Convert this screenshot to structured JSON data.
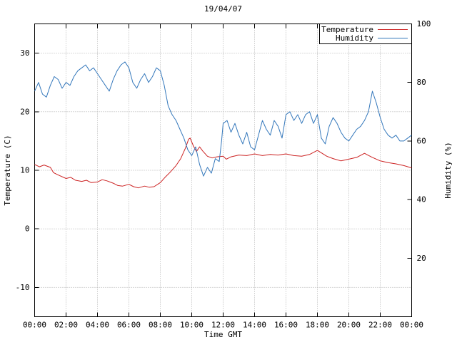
{
  "title": "19/04/07",
  "chart_data": {
    "type": "line",
    "title": "19/04/07",
    "xlabel": "Time GMT",
    "ylabel_left": "Temperature (C)",
    "ylabel_right": "Humidity (%)",
    "x_unit": "hours_gmt",
    "xlim": [
      0,
      24
    ],
    "ylim_left": [
      -15,
      35
    ],
    "ylim_right": [
      0,
      100
    ],
    "xtick_hours": [
      0,
      2,
      4,
      6,
      8,
      10,
      12,
      14,
      16,
      18,
      20,
      22,
      24
    ],
    "xtick_labels": [
      "00:00",
      "02:00",
      "04:00",
      "06:00",
      "08:00",
      "10:00",
      "12:00",
      "14:00",
      "16:00",
      "18:00",
      "20:00",
      "22:00",
      "00:00"
    ],
    "ytick_left": [
      -10,
      0,
      10,
      20,
      30
    ],
    "ytick_right": [
      20,
      40,
      60,
      80,
      100
    ],
    "grid": true,
    "legend_position": "top-right",
    "colors": {
      "temperature": "#cc2222",
      "humidity": "#3377bb",
      "grid": "#b0b0b0",
      "frame": "#000000",
      "background": "#ffffff"
    },
    "series": [
      {
        "name": "Temperature",
        "axis": "left",
        "unit": "C",
        "color": "#cc2222",
        "points": [
          [
            0,
            11.0
          ],
          [
            0.3,
            10.6
          ],
          [
            0.6,
            10.9
          ],
          [
            1.0,
            10.5
          ],
          [
            1.2,
            9.6
          ],
          [
            1.5,
            9.2
          ],
          [
            2.0,
            8.6
          ],
          [
            2.3,
            8.8
          ],
          [
            2.6,
            8.3
          ],
          [
            3.0,
            8.1
          ],
          [
            3.3,
            8.3
          ],
          [
            3.6,
            7.9
          ],
          [
            4.0,
            8.0
          ],
          [
            4.3,
            8.4
          ],
          [
            4.6,
            8.2
          ],
          [
            5.0,
            7.8
          ],
          [
            5.3,
            7.4
          ],
          [
            5.6,
            7.3
          ],
          [
            6.0,
            7.6
          ],
          [
            6.3,
            7.2
          ],
          [
            6.6,
            7.0
          ],
          [
            7.0,
            7.3
          ],
          [
            7.3,
            7.1
          ],
          [
            7.6,
            7.2
          ],
          [
            8.0,
            7.9
          ],
          [
            8.3,
            8.8
          ],
          [
            8.6,
            9.6
          ],
          [
            9.0,
            10.8
          ],
          [
            9.3,
            12.0
          ],
          [
            9.6,
            13.8
          ],
          [
            9.8,
            15.3
          ],
          [
            9.9,
            15.5
          ],
          [
            10.1,
            14.2
          ],
          [
            10.3,
            13.2
          ],
          [
            10.5,
            14.0
          ],
          [
            10.7,
            13.3
          ],
          [
            11.0,
            12.4
          ],
          [
            11.3,
            12.1
          ],
          [
            11.6,
            12.3
          ],
          [
            12.0,
            12.4
          ],
          [
            12.2,
            11.9
          ],
          [
            12.5,
            12.3
          ],
          [
            13.0,
            12.6
          ],
          [
            13.5,
            12.5
          ],
          [
            14.0,
            12.8
          ],
          [
            14.5,
            12.5
          ],
          [
            15.0,
            12.7
          ],
          [
            15.5,
            12.6
          ],
          [
            16.0,
            12.8
          ],
          [
            16.5,
            12.5
          ],
          [
            17.0,
            12.4
          ],
          [
            17.5,
            12.7
          ],
          [
            18.0,
            13.4
          ],
          [
            18.3,
            12.9
          ],
          [
            18.6,
            12.4
          ],
          [
            19.0,
            12.0
          ],
          [
            19.5,
            11.6
          ],
          [
            20.0,
            11.9
          ],
          [
            20.5,
            12.2
          ],
          [
            21.0,
            12.9
          ],
          [
            21.2,
            12.6
          ],
          [
            21.5,
            12.2
          ],
          [
            22.0,
            11.6
          ],
          [
            22.5,
            11.3
          ],
          [
            23.0,
            11.1
          ],
          [
            23.5,
            10.8
          ],
          [
            24.0,
            10.4
          ]
        ]
      },
      {
        "name": "Humidity",
        "axis": "right",
        "unit": "%",
        "color": "#3377bb",
        "points": [
          [
            0,
            77
          ],
          [
            0.25,
            80
          ],
          [
            0.5,
            76
          ],
          [
            0.75,
            75
          ],
          [
            1.0,
            79
          ],
          [
            1.25,
            82
          ],
          [
            1.5,
            81
          ],
          [
            1.75,
            78
          ],
          [
            2.0,
            80
          ],
          [
            2.25,
            79
          ],
          [
            2.5,
            82
          ],
          [
            2.75,
            84
          ],
          [
            3.0,
            85
          ],
          [
            3.25,
            86
          ],
          [
            3.5,
            84
          ],
          [
            3.75,
            85
          ],
          [
            4.0,
            83
          ],
          [
            4.25,
            81
          ],
          [
            4.5,
            79
          ],
          [
            4.75,
            77
          ],
          [
            5.0,
            81
          ],
          [
            5.25,
            84
          ],
          [
            5.5,
            86
          ],
          [
            5.75,
            87
          ],
          [
            6.0,
            85
          ],
          [
            6.25,
            80
          ],
          [
            6.5,
            78
          ],
          [
            6.75,
            81
          ],
          [
            7.0,
            83
          ],
          [
            7.25,
            80
          ],
          [
            7.5,
            82
          ],
          [
            7.75,
            85
          ],
          [
            8.0,
            84
          ],
          [
            8.25,
            79
          ],
          [
            8.5,
            72
          ],
          [
            8.75,
            69
          ],
          [
            9.0,
            67
          ],
          [
            9.25,
            64
          ],
          [
            9.5,
            61
          ],
          [
            9.75,
            57
          ],
          [
            10.0,
            55
          ],
          [
            10.25,
            58
          ],
          [
            10.5,
            52
          ],
          [
            10.75,
            48
          ],
          [
            11.0,
            51
          ],
          [
            11.25,
            49
          ],
          [
            11.5,
            54
          ],
          [
            11.75,
            53
          ],
          [
            11.9,
            60
          ],
          [
            12.0,
            66
          ],
          [
            12.25,
            67
          ],
          [
            12.5,
            63
          ],
          [
            12.75,
            66
          ],
          [
            13.0,
            62
          ],
          [
            13.25,
            59
          ],
          [
            13.5,
            63
          ],
          [
            13.75,
            58
          ],
          [
            14.0,
            57
          ],
          [
            14.25,
            62
          ],
          [
            14.5,
            67
          ],
          [
            14.75,
            64
          ],
          [
            15.0,
            62
          ],
          [
            15.25,
            67
          ],
          [
            15.5,
            65
          ],
          [
            15.75,
            61
          ],
          [
            16.0,
            69
          ],
          [
            16.25,
            70
          ],
          [
            16.5,
            67
          ],
          [
            16.75,
            69
          ],
          [
            17.0,
            66
          ],
          [
            17.25,
            69
          ],
          [
            17.5,
            70
          ],
          [
            17.75,
            66
          ],
          [
            18.0,
            69
          ],
          [
            18.25,
            61
          ],
          [
            18.5,
            59
          ],
          [
            18.75,
            65
          ],
          [
            19.0,
            68
          ],
          [
            19.25,
            66
          ],
          [
            19.5,
            63
          ],
          [
            19.75,
            61
          ],
          [
            20.0,
            60
          ],
          [
            20.25,
            62
          ],
          [
            20.5,
            64
          ],
          [
            20.75,
            65
          ],
          [
            21.0,
            67
          ],
          [
            21.25,
            70
          ],
          [
            21.5,
            77
          ],
          [
            21.75,
            73
          ],
          [
            22.0,
            68
          ],
          [
            22.25,
            64
          ],
          [
            22.5,
            62
          ],
          [
            22.75,
            61
          ],
          [
            23.0,
            62
          ],
          [
            23.25,
            60
          ],
          [
            23.5,
            60
          ],
          [
            23.75,
            61
          ],
          [
            24.0,
            62
          ]
        ]
      }
    ]
  }
}
